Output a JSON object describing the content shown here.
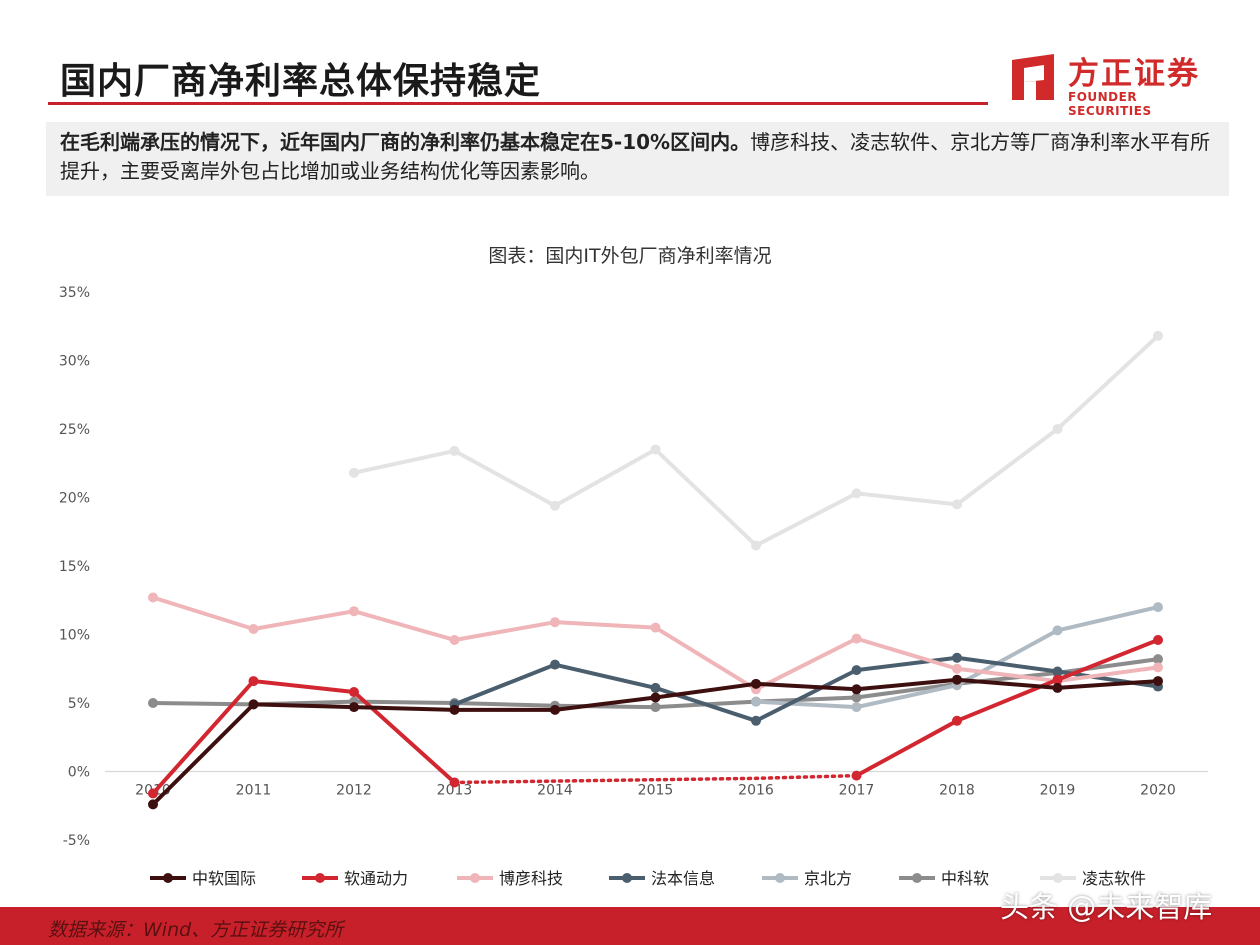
{
  "header": {
    "title": "国内厂商净利率总体保持稳定",
    "logo_cn": "方正证券",
    "logo_en": "FOUNDER SECURITIES"
  },
  "summary": {
    "bold": "在毛利端承压的情况下，近年国内厂商的净利率仍基本稳定在5-10%区间内。",
    "rest": "博彦科技、凌志软件、京北方等厂商净利率水平有所提升，主要受离岸外包占比增加或业务结构优化等因素影响。"
  },
  "footer": {
    "source": "数据来源：Wind、方正证券研究所",
    "watermark": "头条 @未来智库"
  },
  "chart_data": {
    "type": "line",
    "title": "图表：国内IT外包厂商净利率情况",
    "x": [
      "2010",
      "2011",
      "2012",
      "2013",
      "2014",
      "2015",
      "2016",
      "2017",
      "2018",
      "2019",
      "2020"
    ],
    "y_ticks": [
      "35%",
      "30%",
      "25%",
      "20%",
      "15%",
      "10%",
      "5%",
      "0%",
      "-5%"
    ],
    "ylim": [
      -5,
      35
    ],
    "grid": false,
    "legend_position": "bottom",
    "series": [
      {
        "name": "中软国际",
        "color": "#3d0f0f",
        "values": [
          -2.4,
          4.9,
          4.7,
          4.5,
          4.5,
          5.4,
          6.4,
          6.0,
          6.7,
          6.1,
          6.6
        ]
      },
      {
        "name": "软通动力",
        "color": "#d22630",
        "values": [
          -1.6,
          6.6,
          5.8,
          -0.8,
          null,
          null,
          null,
          -0.3,
          3.7,
          6.7,
          9.6
        ],
        "dotted_gap": [
          3,
          7
        ],
        "dotted_values": [
          -0.8,
          -0.7,
          -0.6,
          -0.5,
          -0.3
        ]
      },
      {
        "name": "博彦科技",
        "color": "#efb5b8",
        "values": [
          12.7,
          10.4,
          11.7,
          9.6,
          10.9,
          10.5,
          6.0,
          9.7,
          7.5,
          6.6,
          7.6
        ]
      },
      {
        "name": "法本信息",
        "color": "#4a5e6e",
        "values": [
          null,
          null,
          null,
          4.9,
          7.8,
          6.1,
          3.7,
          7.4,
          8.3,
          7.3,
          6.2
        ]
      },
      {
        "name": "京北方",
        "color": "#b0bac3",
        "values": [
          null,
          null,
          null,
          null,
          null,
          null,
          5.1,
          4.7,
          6.3,
          10.3,
          12.0
        ]
      },
      {
        "name": "中科软",
        "color": "#8c8c8c",
        "values": [
          5.0,
          4.9,
          5.1,
          5.0,
          4.8,
          4.7,
          5.1,
          5.4,
          6.4,
          7.2,
          8.2
        ]
      },
      {
        "name": "凌志软件",
        "color": "#e3e3e3",
        "values": [
          null,
          null,
          21.8,
          23.4,
          19.4,
          23.5,
          16.5,
          20.3,
          19.5,
          25.0,
          31.8
        ]
      }
    ]
  }
}
